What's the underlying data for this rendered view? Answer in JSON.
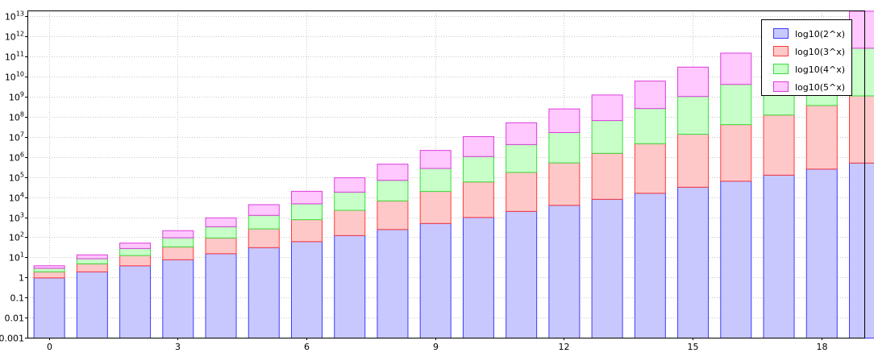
{
  "chart_data": {
    "type": "bar",
    "stacked": true,
    "y_scale": "log",
    "x": [
      0,
      1,
      2,
      3,
      4,
      5,
      6,
      7,
      8,
      9,
      10,
      11,
      12,
      13,
      14,
      15,
      16,
      17,
      18,
      19
    ],
    "ylim": [
      0.001,
      20000000000000
    ],
    "y_ticks": [
      {
        "value": 0.001,
        "label": "0.001"
      },
      {
        "value": 0.01,
        "label": "0.01"
      },
      {
        "value": 0.1,
        "label": "0.1"
      },
      {
        "value": 1,
        "label": "1"
      },
      {
        "value": 10,
        "label": "10",
        "exp": "1"
      },
      {
        "value": 100,
        "label": "10",
        "exp": "2"
      },
      {
        "value": 1000,
        "label": "10",
        "exp": "3"
      },
      {
        "value": 10000,
        "label": "10",
        "exp": "4"
      },
      {
        "value": 100000,
        "label": "10",
        "exp": "5"
      },
      {
        "value": 1000000,
        "label": "10",
        "exp": "6"
      },
      {
        "value": 10000000,
        "label": "10",
        "exp": "7"
      },
      {
        "value": 100000000,
        "label": "10",
        "exp": "8"
      },
      {
        "value": 1000000000,
        "label": "10",
        "exp": "9"
      },
      {
        "value": 10000000000,
        "label": "10",
        "exp": "10"
      },
      {
        "value": 100000000000,
        "label": "10",
        "exp": "11"
      },
      {
        "value": 1000000000000,
        "label": "10",
        "exp": "12"
      },
      {
        "value": 10000000000000,
        "label": "10",
        "exp": "13"
      }
    ],
    "x_ticks": [
      {
        "value": 0,
        "label": "0"
      },
      {
        "value": 3,
        "label": "3"
      },
      {
        "value": 6,
        "label": "6"
      },
      {
        "value": 9,
        "label": "9"
      },
      {
        "value": 12,
        "label": "12"
      },
      {
        "value": 15,
        "label": "15"
      },
      {
        "value": 18,
        "label": "18"
      }
    ],
    "grid": true,
    "legend_position": "top-right",
    "series": [
      {
        "name": "log10(2^x)",
        "fill": "#c8c8ff",
        "stroke": "#3c3cff",
        "values": [
          1,
          2,
          4,
          8,
          16,
          32,
          64,
          128,
          256,
          512,
          1024,
          2048,
          4096,
          8192,
          16384,
          32768,
          65536,
          131072,
          262144,
          524288
        ]
      },
      {
        "name": "log10(3^x)",
        "fill": "#ffc8c8",
        "stroke": "#ff3c3c",
        "values": [
          1,
          3,
          9,
          27,
          81,
          243,
          729,
          2187,
          6561,
          19683,
          59049,
          177147,
          531441,
          1594323,
          4782969,
          14348907,
          43046721,
          129140163,
          387420489,
          1162261467
        ]
      },
      {
        "name": "log10(4^x)",
        "fill": "#c8ffc8",
        "stroke": "#3cdc3c",
        "values": [
          1,
          4,
          16,
          64,
          256,
          1024,
          4096,
          16384,
          65536,
          262144,
          1048576,
          4194304,
          16777216,
          67108864,
          268435456,
          1073741824,
          4294967296,
          17179869184,
          68719476736,
          274877906944
        ]
      },
      {
        "name": "log10(5^x)",
        "fill": "#ffc8ff",
        "stroke": "#dc3cdc",
        "values": [
          1,
          5,
          25,
          125,
          625,
          3125,
          15625,
          78125,
          390625,
          1953125,
          9765625,
          48828125,
          244140625,
          1220703125,
          6103515625,
          30517578125,
          152587890625,
          762939453125,
          3814697265625,
          19073486328125
        ]
      }
    ]
  }
}
